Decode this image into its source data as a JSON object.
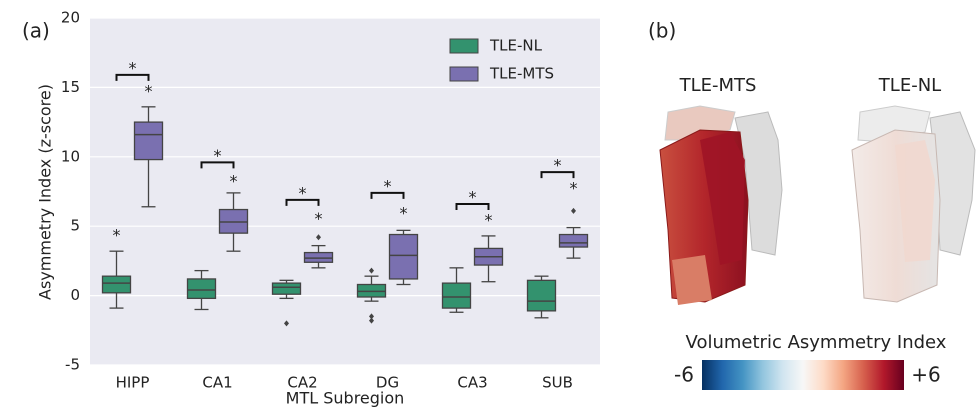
{
  "chart_data": {
    "type": "box",
    "panel_label": "(a)",
    "y_label": "Asymmetry Index (z-score)",
    "x_label": "MTL Subregion",
    "categories": [
      "HIPP",
      "CA1",
      "CA2",
      "DG",
      "CA3",
      "SUB"
    ],
    "ylim": [
      -5,
      20
    ],
    "yticks": [
      -5,
      0,
      5,
      10,
      15,
      20
    ],
    "grid": true,
    "legend": "upper right",
    "significance_marker": "*",
    "bracket_y": [
      15.9,
      9.6,
      6.9,
      7.4,
      6.6,
      8.9
    ],
    "series": [
      {
        "name": "TLE-NL",
        "color": "#33926e",
        "whislo": [
          -0.9,
          -1.0,
          -0.2,
          -0.4,
          -1.2,
          -1.6
        ],
        "q1": [
          0.2,
          -0.2,
          0.1,
          -0.1,
          -0.9,
          -1.1
        ],
        "med": [
          0.9,
          0.4,
          0.6,
          0.3,
          -0.1,
          -0.4
        ],
        "q3": [
          1.4,
          1.2,
          0.9,
          0.8,
          0.9,
          1.1
        ],
        "whishi": [
          3.2,
          1.8,
          1.1,
          1.4,
          2.0,
          1.4
        ],
        "fliers": [
          [],
          [],
          [
            -2.0
          ],
          [
            -1.5,
            -1.8,
            1.8
          ],
          [],
          []
        ],
        "star_y": [
          4.5,
          null,
          null,
          null,
          null,
          null
        ]
      },
      {
        "name": "TLE-MTS",
        "color": "#7a70b0",
        "whislo": [
          6.4,
          3.2,
          2.0,
          0.8,
          1.0,
          2.7
        ],
        "q1": [
          9.8,
          4.5,
          2.4,
          1.2,
          2.2,
          3.5
        ],
        "med": [
          11.6,
          5.3,
          2.7,
          2.9,
          2.8,
          3.8
        ],
        "q3": [
          12.5,
          6.2,
          3.1,
          4.4,
          3.4,
          4.4
        ],
        "whishi": [
          13.6,
          7.4,
          3.6,
          4.7,
          4.3,
          4.9
        ],
        "fliers": [
          [],
          [],
          [
            4.2
          ],
          [],
          [],
          [
            6.1
          ]
        ],
        "star_y": [
          14.9,
          8.4,
          5.7,
          6.1,
          5.6,
          7.9
        ]
      }
    ]
  },
  "panel_b": {
    "label": "(b)",
    "images": [
      {
        "title": "TLE-MTS"
      },
      {
        "title": "TLE-NL"
      }
    ],
    "colorbar": {
      "title": "Volumetric Asymmetry Index",
      "min_label": "-6",
      "max_label": "+6"
    }
  }
}
